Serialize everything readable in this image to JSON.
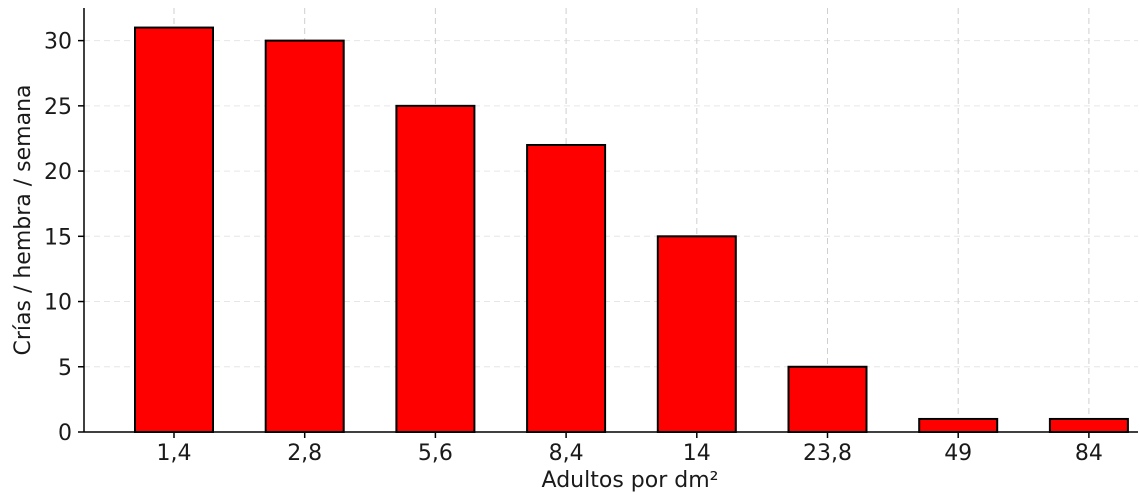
{
  "chart_data": {
    "type": "bar",
    "title": "",
    "xlabel": "Adultos por dm²",
    "ylabel": "Crías / hembra / semana",
    "categories": [
      "1,4",
      "2,8",
      "5,6",
      "8,4",
      "14",
      "23,8",
      "49",
      "84"
    ],
    "values": [
      31,
      30,
      25,
      22,
      15,
      5,
      1,
      1
    ],
    "ylim": [
      0,
      32.5
    ],
    "yticks": [
      0,
      5,
      10,
      15,
      20,
      25,
      30
    ],
    "grid": true,
    "legend": "none",
    "colors": {
      "bar_fill": "#ff0000",
      "bar_edge": "#000000"
    }
  }
}
